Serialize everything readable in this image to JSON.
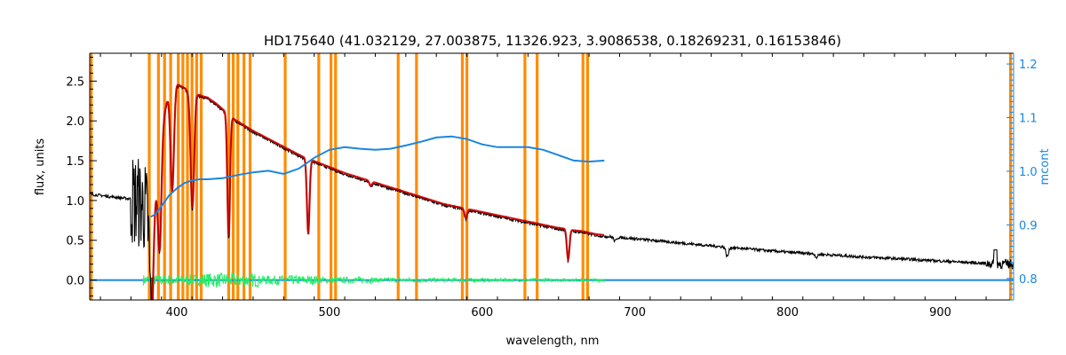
{
  "chart_data": {
    "type": "line",
    "title": "HD175640    (41.032129, 27.003875, 11326.923, 3.9086538, 0.18269231, 0.16153846)",
    "xlabel": "wavelength, nm",
    "ylabel": "flux, units",
    "y2label": "mcont",
    "xlim": [
      343,
      948
    ],
    "ylim": [
      -0.25,
      2.85
    ],
    "y2lim": [
      0.76,
      1.22
    ],
    "x_ticks": [
      400,
      500,
      600,
      700,
      800,
      900
    ],
    "y_ticks": [
      "0.0",
      "0.5",
      "1.0",
      "1.5",
      "2.0",
      "2.5"
    ],
    "y2_ticks": [
      "0.8",
      "0.9",
      "1.0",
      "1.1",
      "1.2"
    ],
    "grid": false,
    "colors": {
      "observed": "#000000",
      "model": "#cc0000",
      "residual": "#22ee66",
      "mcont": "#1a86e0",
      "mask": "#ff8c00",
      "right_axis": "#1a86e0"
    },
    "mask_lines": [
      344,
      382,
      388,
      392,
      396,
      401,
      404,
      407,
      410,
      413,
      416,
      434,
      437,
      440,
      444,
      448,
      471,
      493,
      501,
      504,
      545,
      557,
      587,
      590,
      628,
      636,
      666,
      669,
      946
    ],
    "continuum": {
      "x": [
        343,
        360,
        370,
        376,
        380,
        384,
        390,
        396,
        400,
        405,
        408,
        412,
        416,
        420,
        426,
        432,
        438,
        444,
        450,
        456,
        462,
        466,
        470,
        474,
        478,
        482,
        486,
        490,
        494,
        498,
        502,
        506,
        510,
        515,
        520,
        525,
        530,
        535,
        540,
        545,
        550,
        555,
        560,
        565,
        570,
        575,
        580,
        585,
        590,
        595,
        600,
        605,
        610,
        615,
        620,
        625,
        630,
        635,
        640,
        645,
        650,
        655,
        660,
        665,
        670,
        675,
        680,
        700,
        750,
        800,
        850,
        900,
        930,
        948
      ],
      "y": [
        1.08,
        1.04,
        1.02,
        0.97,
        0.88,
        0.62,
        1.9,
        2.45,
        2.45,
        2.4,
        2.35,
        2.33,
        2.3,
        2.28,
        2.2,
        2.1,
        2.0,
        1.93,
        1.86,
        1.8,
        1.74,
        1.7,
        1.66,
        1.62,
        1.58,
        1.54,
        1.51,
        1.48,
        1.45,
        1.42,
        1.39,
        1.36,
        1.33,
        1.3,
        1.27,
        1.24,
        1.21,
        1.18,
        1.15,
        1.12,
        1.09,
        1.06,
        1.03,
        1.0,
        0.97,
        0.94,
        0.92,
        0.9,
        0.88,
        0.86,
        0.84,
        0.82,
        0.8,
        0.78,
        0.76,
        0.74,
        0.72,
        0.7,
        0.68,
        0.66,
        0.64,
        0.63,
        0.61,
        0.6,
        0.58,
        0.56,
        0.55,
        0.52,
        0.43,
        0.35,
        0.29,
        0.24,
        0.21,
        0.2
      ]
    },
    "absorption_lines": [
      {
        "x": 383.5,
        "depth": 1.1
      },
      {
        "x": 388.9,
        "depth": 1.3
      },
      {
        "x": 397,
        "depth": 1.35
      },
      {
        "x": 410.2,
        "depth": 1.45
      },
      {
        "x": 434,
        "depth": 1.55
      },
      {
        "x": 486.1,
        "depth": 0.95
      },
      {
        "x": 656.3,
        "depth": 0.38
      },
      {
        "x": 589.3,
        "depth": 0.12
      },
      {
        "x": 527,
        "depth": 0.06
      },
      {
        "x": 687,
        "depth": 0.05
      },
      {
        "x": 760.5,
        "depth": 0.12
      },
      {
        "x": 819,
        "depth": 0.04
      }
    ],
    "mcont": {
      "x": [
        383,
        386,
        390,
        395,
        400,
        405,
        410,
        415,
        420,
        430,
        440,
        450,
        460,
        470,
        480,
        490,
        500,
        510,
        520,
        530,
        540,
        550,
        560,
        570,
        580,
        590,
        600,
        610,
        620,
        630,
        640,
        650,
        660,
        670,
        680
      ],
      "y": [
        0.915,
        0.92,
        0.935,
        0.955,
        0.968,
        0.978,
        0.983,
        0.985,
        0.985,
        0.987,
        0.993,
        0.998,
        1.001,
        0.995,
        1.005,
        1.025,
        1.04,
        1.045,
        1.042,
        1.04,
        1.042,
        1.048,
        1.055,
        1.063,
        1.065,
        1.06,
        1.05,
        1.045,
        1.045,
        1.045,
        1.04,
        1.03,
        1.02,
        1.018,
        1.02
      ]
    },
    "blue_baseline": {
      "x": [
        343,
        948
      ],
      "y": [
        0.0,
        0.0
      ]
    },
    "residual": {
      "x_start": 378,
      "x_end": 681,
      "amplitude": [
        0.07,
        0.09,
        0.06,
        0.04,
        0.03,
        0.025,
        0.02,
        0.02
      ]
    }
  }
}
